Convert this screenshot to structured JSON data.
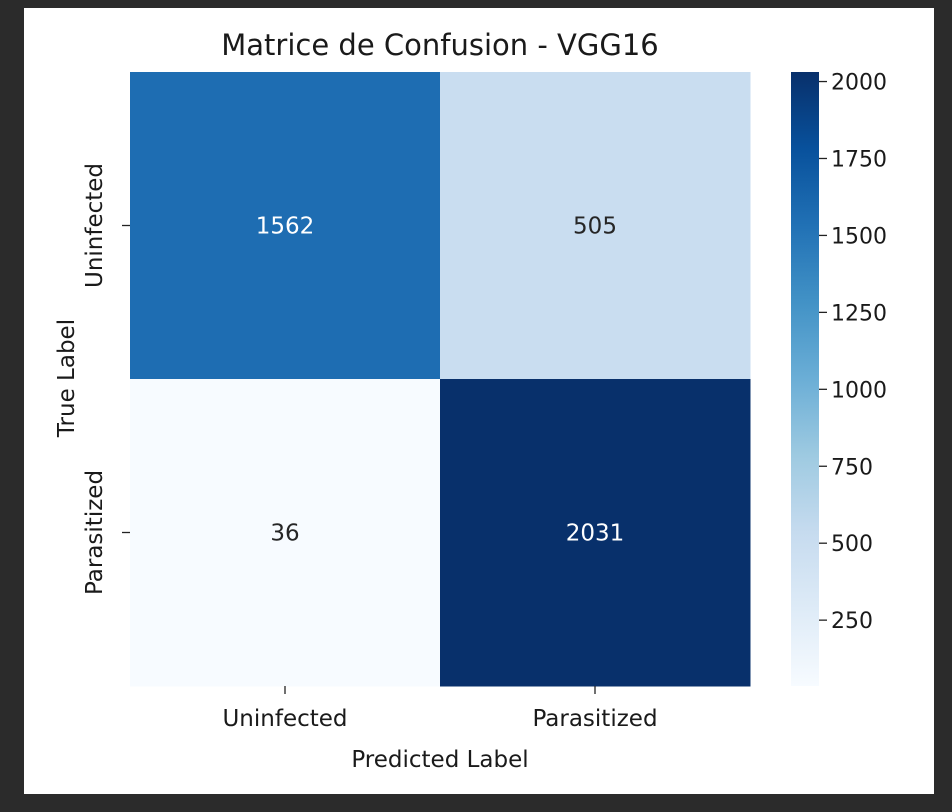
{
  "chart_data": {
    "type": "heatmap",
    "title": "Matrice de Confusion - VGG16",
    "xlabel": "Predicted Label",
    "ylabel": "True Label",
    "x_categories": [
      "Uninfected",
      "Parasitized"
    ],
    "y_categories": [
      "Uninfected",
      "Parasitized"
    ],
    "values": [
      [
        1562,
        505
      ],
      [
        36,
        2031
      ]
    ],
    "colormap": "Blues",
    "colorbar": {
      "min": 36,
      "max": 2031,
      "ticks": [
        250,
        500,
        750,
        1000,
        1250,
        1500,
        1750,
        2000
      ]
    },
    "grid": false
  }
}
